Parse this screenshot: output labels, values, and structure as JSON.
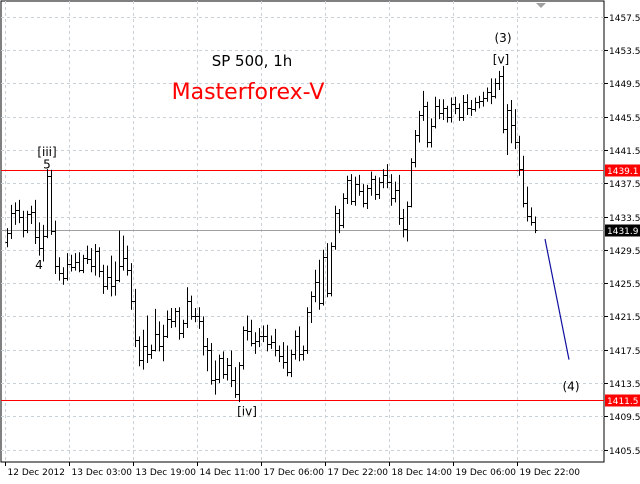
{
  "chart_data": {
    "type": "ohlc",
    "title": "SP 500, 1h",
    "watermark": "Masterforex-V",
    "y_axis": {
      "ylim": [
        1404.0,
        1459.4
      ],
      "ticks": [
        1405.5,
        1409.5,
        1413.5,
        1417.5,
        1421.5,
        1425.5,
        1429.5,
        1433.5,
        1437.5,
        1441.5,
        1445.5,
        1449.5,
        1453.5,
        1457.5
      ],
      "tick_labels": [
        "1405.5",
        "1409.5",
        "1413.5",
        "1417.5",
        "1421.5",
        "1425.5",
        "1429.5",
        "1433.5",
        "1437.5",
        "1441.5",
        "1445.5",
        "1449.5",
        "1453.5",
        "1457.5"
      ]
    },
    "x_axis": {
      "tick_labels": [
        "12 Dec 2012",
        "13 Dec 03:00",
        "13 Dec 19:00",
        "14 Dec 11:00",
        "17 Dec 06:00",
        "17 Dec 22:00",
        "18 Dec 14:00",
        "19 Dec 06:00",
        "19 Dec 22:00"
      ],
      "tick_bar_index": [
        0,
        16,
        32,
        48,
        64,
        80,
        96,
        112,
        128
      ]
    },
    "horizontal_levels": [
      {
        "value": 1439.1,
        "label": "1439.1",
        "color": "#ff0000"
      },
      {
        "value": 1411.5,
        "label": "1411.5",
        "color": "#ff0000"
      },
      {
        "value": 1431.9,
        "label": "1431.9",
        "color": "#a0a0a0"
      }
    ],
    "wave_labels": [
      {
        "text": "[iii]",
        "bar": 10,
        "price": 1440.8,
        "anchor": "middle"
      },
      {
        "text": "5",
        "bar": 10,
        "price": 1439.3,
        "anchor": "middle"
      },
      {
        "text": "4",
        "bar": 8,
        "price": 1427.2,
        "anchor": "middle"
      },
      {
        "text": "[iv]",
        "bar": 60,
        "price": 1409.6,
        "anchor": "middle"
      },
      {
        "text": "(3)",
        "bar": 124,
        "price": 1454.5,
        "anchor": "middle"
      },
      {
        "text": "[v]",
        "bar": 123.5,
        "price": 1451.9,
        "anchor": "middle"
      },
      {
        "text": "(4)",
        "bar": 141,
        "price": 1412.6,
        "anchor": "middle"
      }
    ],
    "projection": {
      "from": {
        "bar": 134.5,
        "price": 1430.8
      },
      "to": {
        "bar": 140.5,
        "price": 1416.3
      },
      "color": "#1010a0"
    },
    "colors": {
      "grid": "#c8d0d8",
      "bars": "#000000",
      "axis": "#000000",
      "background": "#ffffff"
    },
    "bars": [
      [
        1430.4,
        1432.1,
        1429.8,
        1431.5
      ],
      [
        1431.5,
        1434.9,
        1430.8,
        1433.9
      ],
      [
        1433.9,
        1435.2,
        1432.5,
        1434.3
      ],
      [
        1434.3,
        1435.5,
        1432.7,
        1433.4
      ],
      [
        1433.4,
        1434.2,
        1431.0,
        1431.9
      ],
      [
        1431.9,
        1434.2,
        1431.5,
        1433.8
      ],
      [
        1433.8,
        1434.8,
        1432.6,
        1434.1
      ],
      [
        1434.1,
        1435.5,
        1430.2,
        1431.0
      ],
      [
        1431.0,
        1432.8,
        1428.8,
        1429.7
      ],
      [
        1429.7,
        1432.5,
        1428.1,
        1431.2
      ],
      [
        1431.2,
        1439.2,
        1430.9,
        1438.4
      ],
      [
        1438.4,
        1439.1,
        1431.3,
        1431.8
      ],
      [
        1431.8,
        1433.0,
        1426.6,
        1427.6
      ],
      [
        1427.6,
        1428.6,
        1425.8,
        1426.7
      ],
      [
        1426.7,
        1427.4,
        1425.3,
        1426.1
      ],
      [
        1426.1,
        1429.1,
        1425.8,
        1427.8
      ],
      [
        1427.8,
        1428.9,
        1426.9,
        1427.4
      ],
      [
        1427.4,
        1429.1,
        1427.0,
        1428.0
      ],
      [
        1428.0,
        1429.2,
        1426.8,
        1427.1
      ],
      [
        1427.1,
        1428.9,
        1426.7,
        1428.5
      ],
      [
        1428.5,
        1430.0,
        1427.8,
        1428.4
      ],
      [
        1428.4,
        1429.7,
        1426.8,
        1427.5
      ],
      [
        1427.5,
        1430.2,
        1426.4,
        1429.4
      ],
      [
        1429.4,
        1429.8,
        1426.2,
        1426.9
      ],
      [
        1426.9,
        1427.7,
        1424.2,
        1425.2
      ],
      [
        1425.2,
        1427.6,
        1424.7,
        1426.2
      ],
      [
        1426.2,
        1428.8,
        1423.9,
        1425.1
      ],
      [
        1425.1,
        1428.1,
        1424.0,
        1425.9
      ],
      [
        1425.9,
        1431.8,
        1425.6,
        1427.5
      ],
      [
        1427.5,
        1431.2,
        1427.0,
        1428.5
      ],
      [
        1428.5,
        1430.0,
        1426.4,
        1427.1
      ],
      [
        1427.1,
        1427.9,
        1422.3,
        1423.3
      ],
      [
        1423.3,
        1424.8,
        1417.8,
        1418.7
      ],
      [
        1418.7,
        1419.1,
        1415.5,
        1416.3
      ],
      [
        1416.3,
        1419.9,
        1415.1,
        1418.0
      ],
      [
        1418.0,
        1421.6,
        1415.9,
        1417.0
      ],
      [
        1417.0,
        1418.1,
        1416.4,
        1417.5
      ],
      [
        1417.5,
        1422.4,
        1417.3,
        1419.4
      ],
      [
        1419.4,
        1420.9,
        1417.3,
        1418.0
      ],
      [
        1418.0,
        1420.5,
        1416.1,
        1419.2
      ],
      [
        1419.2,
        1422.2,
        1418.9,
        1421.2
      ],
      [
        1421.2,
        1422.5,
        1420.1,
        1421.0
      ],
      [
        1421.0,
        1422.5,
        1420.2,
        1422.2
      ],
      [
        1422.2,
        1422.6,
        1418.7,
        1419.5
      ],
      [
        1419.5,
        1421.1,
        1418.9,
        1420.7
      ],
      [
        1420.7,
        1425.0,
        1420.1,
        1423.4
      ],
      [
        1423.4,
        1424.0,
        1421.1,
        1421.6
      ],
      [
        1421.6,
        1422.5,
        1420.8,
        1421.5
      ],
      [
        1421.5,
        1422.6,
        1420.0,
        1421.0
      ],
      [
        1421.0,
        1421.5,
        1416.8,
        1418.0
      ],
      [
        1418.0,
        1418.9,
        1414.9,
        1417.5
      ],
      [
        1417.5,
        1418.3,
        1413.3,
        1413.8
      ],
      [
        1413.8,
        1416.2,
        1412.1,
        1414.0
      ],
      [
        1414.0,
        1416.9,
        1413.5,
        1416.5
      ],
      [
        1416.5,
        1417.3,
        1414.0,
        1414.6
      ],
      [
        1414.6,
        1416.5,
        1413.8,
        1415.6
      ],
      [
        1415.6,
        1417.4,
        1413.0,
        1413.8
      ],
      [
        1413.8,
        1415.4,
        1411.7,
        1412.2
      ],
      [
        1412.2,
        1416.0,
        1411.2,
        1415.6
      ],
      [
        1415.6,
        1420.3,
        1415.1,
        1419.9
      ],
      [
        1419.9,
        1421.6,
        1418.6,
        1419.7
      ],
      [
        1419.7,
        1421.1,
        1417.9,
        1418.3
      ],
      [
        1418.3,
        1419.6,
        1417.0,
        1418.6
      ],
      [
        1418.6,
        1420.1,
        1417.8,
        1419.2
      ],
      [
        1419.2,
        1420.4,
        1418.4,
        1419.1
      ],
      [
        1419.1,
        1420.5,
        1417.3,
        1418.2
      ],
      [
        1418.2,
        1419.2,
        1417.6,
        1418.4
      ],
      [
        1418.4,
        1420.0,
        1416.7,
        1417.4
      ],
      [
        1417.4,
        1418.0,
        1416.0,
        1416.7
      ],
      [
        1416.7,
        1418.4,
        1415.2,
        1416.0
      ],
      [
        1416.0,
        1418.0,
        1414.3,
        1414.8
      ],
      [
        1414.8,
        1417.5,
        1414.2,
        1417.0
      ],
      [
        1417.0,
        1419.8,
        1416.3,
        1419.2
      ],
      [
        1419.2,
        1420.3,
        1416.1,
        1417.0
      ],
      [
        1417.0,
        1418.0,
        1416.2,
        1417.5
      ],
      [
        1417.5,
        1422.6,
        1417.0,
        1422.0
      ],
      [
        1422.0,
        1424.5,
        1420.7,
        1424.0
      ],
      [
        1424.0,
        1427.1,
        1423.2,
        1425.6
      ],
      [
        1425.6,
        1428.3,
        1422.3,
        1423.1
      ],
      [
        1423.1,
        1429.5,
        1422.8,
        1428.6
      ],
      [
        1428.6,
        1430.3,
        1423.8,
        1424.3
      ],
      [
        1424.3,
        1430.4,
        1423.9,
        1430.0
      ],
      [
        1430.0,
        1434.8,
        1429.5,
        1433.9
      ],
      [
        1433.9,
        1434.4,
        1431.5,
        1432.5
      ],
      [
        1432.5,
        1436.3,
        1432.1,
        1435.7
      ],
      [
        1435.7,
        1438.4,
        1435.0,
        1437.9
      ],
      [
        1437.9,
        1438.6,
        1434.9,
        1435.4
      ],
      [
        1435.4,
        1438.3,
        1434.8,
        1437.4
      ],
      [
        1437.4,
        1438.5,
        1436.0,
        1436.6
      ],
      [
        1436.6,
        1437.4,
        1434.6,
        1435.1
      ],
      [
        1435.1,
        1437.3,
        1434.4,
        1436.9
      ],
      [
        1436.9,
        1438.9,
        1436.0,
        1438.0
      ],
      [
        1438.0,
        1438.4,
        1435.5,
        1436.2
      ],
      [
        1436.2,
        1438.2,
        1435.6,
        1437.7
      ],
      [
        1437.7,
        1439.2,
        1436.9,
        1438.5
      ],
      [
        1438.5,
        1439.8,
        1436.9,
        1437.6
      ],
      [
        1437.6,
        1438.6,
        1434.8,
        1435.7
      ],
      [
        1435.7,
        1437.7,
        1435.2,
        1436.7
      ],
      [
        1436.7,
        1438.5,
        1432.5,
        1433.3
      ],
      [
        1433.3,
        1434.4,
        1431.0,
        1432.0
      ],
      [
        1432.0,
        1435.3,
        1430.5,
        1434.8
      ],
      [
        1434.8,
        1440.5,
        1434.6,
        1440.1
      ],
      [
        1440.1,
        1443.9,
        1439.4,
        1443.3
      ],
      [
        1443.3,
        1446.2,
        1442.4,
        1445.7
      ],
      [
        1445.7,
        1448.6,
        1445.0,
        1446.8
      ],
      [
        1446.8,
        1447.3,
        1441.8,
        1442.5
      ],
      [
        1442.5,
        1445.3,
        1441.8,
        1444.4
      ],
      [
        1444.4,
        1447.9,
        1444.1,
        1446.8
      ],
      [
        1446.8,
        1447.6,
        1445.2,
        1446.0
      ],
      [
        1446.0,
        1447.6,
        1445.1,
        1446.5
      ],
      [
        1446.5,
        1446.8,
        1444.8,
        1445.4
      ],
      [
        1445.4,
        1447.8,
        1444.8,
        1447.0
      ],
      [
        1447.0,
        1447.9,
        1445.8,
        1446.5
      ],
      [
        1446.5,
        1447.1,
        1445.0,
        1445.4
      ],
      [
        1445.4,
        1448.1,
        1445.0,
        1447.3
      ],
      [
        1447.3,
        1448.2,
        1445.7,
        1446.5
      ],
      [
        1446.5,
        1447.5,
        1445.6,
        1446.4
      ],
      [
        1446.4,
        1447.8,
        1446.1,
        1447.3
      ],
      [
        1447.3,
        1448.0,
        1446.5,
        1447.4
      ],
      [
        1447.4,
        1448.5,
        1446.7,
        1447.8
      ],
      [
        1447.8,
        1449.0,
        1447.3,
        1448.5
      ],
      [
        1448.5,
        1450.1,
        1447.0,
        1448.0
      ],
      [
        1448.0,
        1450.1,
        1447.7,
        1449.6
      ],
      [
        1449.6,
        1451.0,
        1448.7,
        1450.4
      ],
      [
        1450.4,
        1451.6,
        1443.5,
        1444.0
      ],
      [
        1444.0,
        1447.0,
        1440.9,
        1446.3
      ],
      [
        1446.3,
        1447.5,
        1442.3,
        1444.5
      ],
      [
        1444.5,
        1446.4,
        1441.6,
        1442.4
      ],
      [
        1442.4,
        1443.2,
        1438.4,
        1439.2
      ],
      [
        1439.2,
        1440.8,
        1434.6,
        1435.1
      ],
      [
        1435.1,
        1437.1,
        1432.9,
        1433.6
      ],
      [
        1433.6,
        1434.6,
        1432.4,
        1432.8
      ],
      [
        1432.8,
        1433.5,
        1431.5,
        1431.9
      ]
    ]
  }
}
